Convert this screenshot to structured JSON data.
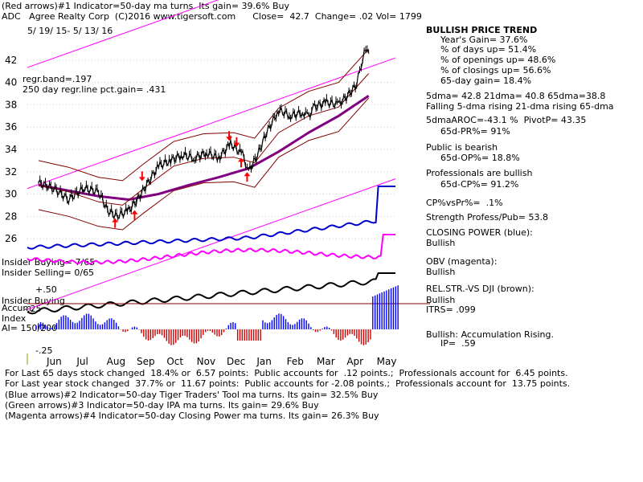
{
  "header": {
    "line1": "(Red arrows)#1 Indicator=50-day ma turns. Its gain= 39.6% Buy",
    "line2": "ADC   Agree Realty Corp  (C)2016 www.tigersoft.com      Close=  42.7  Change= .02 Vol= 1799",
    "line3": "5/ 19/ 15- 5/ 13/ 16"
  },
  "left_labels": {
    "regr_band": "regr.band=.197",
    "regr_gain": "250 day regr.line pct.gain= .431",
    "insider_buying_count": "Insider Buying= 7/65",
    "insider_selling_count": "Insider Selling= 0/65",
    "plus50": "+.50",
    "insider_buying": "Insider Buying",
    "accum": "Accum.",
    "m25": "-.25",
    "index": "Index",
    "ai": "AI= 150/200",
    "minus25": "-.25"
  },
  "right_panel": {
    "trend_title": "BULLISH PRICE TREND",
    "years_gain": "Year's Gain= 37.6%",
    "days_up": "% of days up= 51.4%",
    "openings_up": "% of openings up= 48.6%",
    "closings_up": "% of closings up= 56.6%",
    "gain_65": "65-day gain= 18.4%",
    "dma": "5dma= 42.8 21dma= 40.8 65dma=38.8",
    "dma_trend": "Falling 5-dma rising 21-dma rising 65-dma",
    "aroc": "5dmaAROC=-43.1 %  PivotP= 43.35",
    "pr65": "65d-PR%= 91%",
    "public_title": "Public is bearish",
    "op65": "65d-OP%= 18.8%",
    "prof_title": "Professionals are bullish",
    "cp65": "65d-CP%= 91.2%",
    "cpvspr": "CP%vsPr%=  .1%",
    "strength": "Strength Profess/Pub= 53.8",
    "closing_power": "CLOSING POWER (blue):",
    "cp_bullish": "Bullish",
    "obv": "OBV (magenta):",
    "obv_bullish": "Bullish",
    "relstr": "REL.STR.-VS DJI (brown):",
    "relstr_bullish": "Bullish",
    "itrs": "ITRS= .099",
    "accum_title": "Bullish: Accumulation Rising.",
    "ip": "IP=  .59"
  },
  "footer": {
    "line1": "For Last 65 days stock changed  18.4% or  6.57 points:  Public accounts for  .12 points.;  Professionals account for  6.45 points.",
    "line2": "For Last year stock changed  37.7% or  11.67 points:  Public accounts for -2.08 points.;  Professionals account for  13.75 points.",
    "line3": "(Blue arrows)#2 Indicator=50-day Tiger Traders' Tool ma turns. Its gain= 32.5% Buy",
    "line4": "(Green arrows)#3 Indicator=50-day IPA ma turns. Its gain= 29.6% Buy",
    "line5": "(Magenta arrows)#4 Indicator=50-day Closing Power ma turns. Its gain= 26.3% Buy"
  },
  "colors": {
    "price": "#000000",
    "channel": "#ff00ff",
    "ma_thick": "#800080",
    "ma_thin": "#8b0000",
    "band": "#800000",
    "closing_power": "#0000cc",
    "obv": "#ff00ff",
    "relstr": "#8b4513",
    "accum_pos": "#0000ff",
    "accum_neg": "#cc0000",
    "arrow_red": "#ff0000"
  },
  "chart_data": {
    "type": "line",
    "title": "ADC Agree Realty Corp",
    "x_tick_labels": [
      "Jun",
      "Jul",
      "Aug",
      "Sep",
      "Oct",
      "Nov",
      "Dec",
      "Jan",
      "Feb",
      "Mar",
      "Apr",
      "May"
    ],
    "y_tick_labels": [
      "42",
      "40",
      "38",
      "36",
      "34",
      "32",
      "30",
      "28",
      "26"
    ],
    "ylim": [
      25,
      43.5
    ],
    "series": [
      {
        "name": "ADC close",
        "x": [
          0,
          0.5,
          1,
          1.5,
          2,
          2.3,
          2.6,
          3,
          3.3,
          3.6,
          4,
          4.4,
          4.8,
          5.2,
          5.6,
          6,
          6.4,
          6.8,
          7,
          7.3,
          7.6,
          8,
          8.4,
          8.8,
          9,
          9.2,
          9.6,
          10,
          10.3,
          10.6,
          10.8,
          10.9,
          11
        ],
        "values": [
          31.0,
          30.5,
          29.5,
          30.5,
          30.2,
          28.5,
          28.0,
          28.5,
          29.5,
          30.8,
          32.5,
          33.0,
          33.5,
          33.2,
          33.7,
          33.2,
          34.5,
          33.5,
          32.0,
          33.5,
          35.5,
          37.5,
          37.0,
          37.3,
          37.0,
          37.8,
          38.2,
          38.0,
          38.8,
          39.8,
          42.2,
          43.2,
          42.7
        ]
      },
      {
        "name": "65-dma",
        "x": [
          0,
          1,
          2,
          3,
          4,
          5,
          6,
          7,
          8,
          9,
          10,
          11
        ],
        "values": [
          30.8,
          30.3,
          29.8,
          29.5,
          30.0,
          30.8,
          31.5,
          32.3,
          33.8,
          35.5,
          37.0,
          38.8
        ]
      },
      {
        "name": "21-dma",
        "x": [
          0,
          1,
          2,
          2.8,
          3.5,
          4.5,
          5.5,
          6.5,
          7.2,
          8,
          9,
          10,
          11
        ],
        "values": [
          30.8,
          30.2,
          29.3,
          29.0,
          30.5,
          32.5,
          33.2,
          33.3,
          32.8,
          35.5,
          37.0,
          37.8,
          40.8
        ]
      }
    ],
    "regression": {
      "start": 30.5,
      "end": 42.2,
      "band_pct": 0.197
    },
    "arrows": [
      {
        "color": "red",
        "dir": "up",
        "x": 2.55
      },
      {
        "color": "red",
        "dir": "up",
        "x": 3.2
      },
      {
        "color": "red",
        "dir": "down",
        "x": 3.45
      },
      {
        "color": "red",
        "dir": "down",
        "x": 6.35
      },
      {
        "color": "red",
        "dir": "down",
        "x": 6.6
      },
      {
        "color": "red",
        "dir": "up",
        "x": 6.75
      },
      {
        "color": "red",
        "dir": "up",
        "x": 6.95
      }
    ]
  }
}
